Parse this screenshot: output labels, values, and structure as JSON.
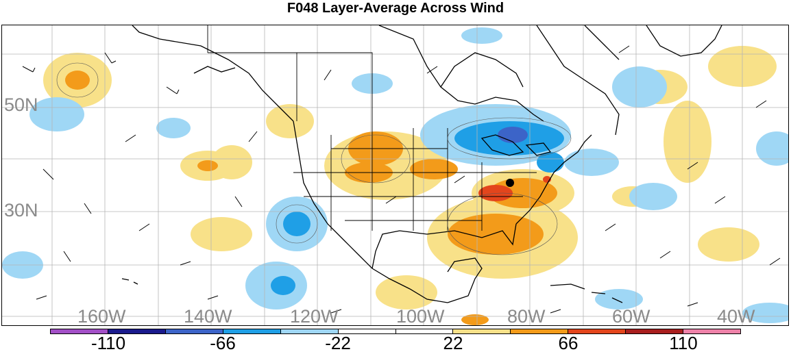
{
  "title": "F048 Layer-Average Across Wind",
  "lat_labels": [
    "50N",
    "30N"
  ],
  "lon_labels": [
    "160W",
    "140W",
    "120W",
    "100W",
    "80W",
    "60W",
    "40W"
  ],
  "colorbar": {
    "colors": [
      "#a24fc6",
      "#1a1a8c",
      "#3c64c8",
      "#1f9fe6",
      "#9fd7f5",
      "#ffffff",
      "#ffffff",
      "#f8e189",
      "#f39b1a",
      "#e3451c",
      "#a81e1e",
      "#ee82a9"
    ],
    "labels": [
      "-110",
      "-66",
      "-22",
      "22",
      "66",
      "110"
    ]
  },
  "palette": {
    "light_blue": "#9fd7f5",
    "blue": "#1f9fe6",
    "dark_blue": "#3c64c8",
    "light_yellow": "#f8e189",
    "orange": "#f39b1a",
    "red": "#e3451c"
  }
}
